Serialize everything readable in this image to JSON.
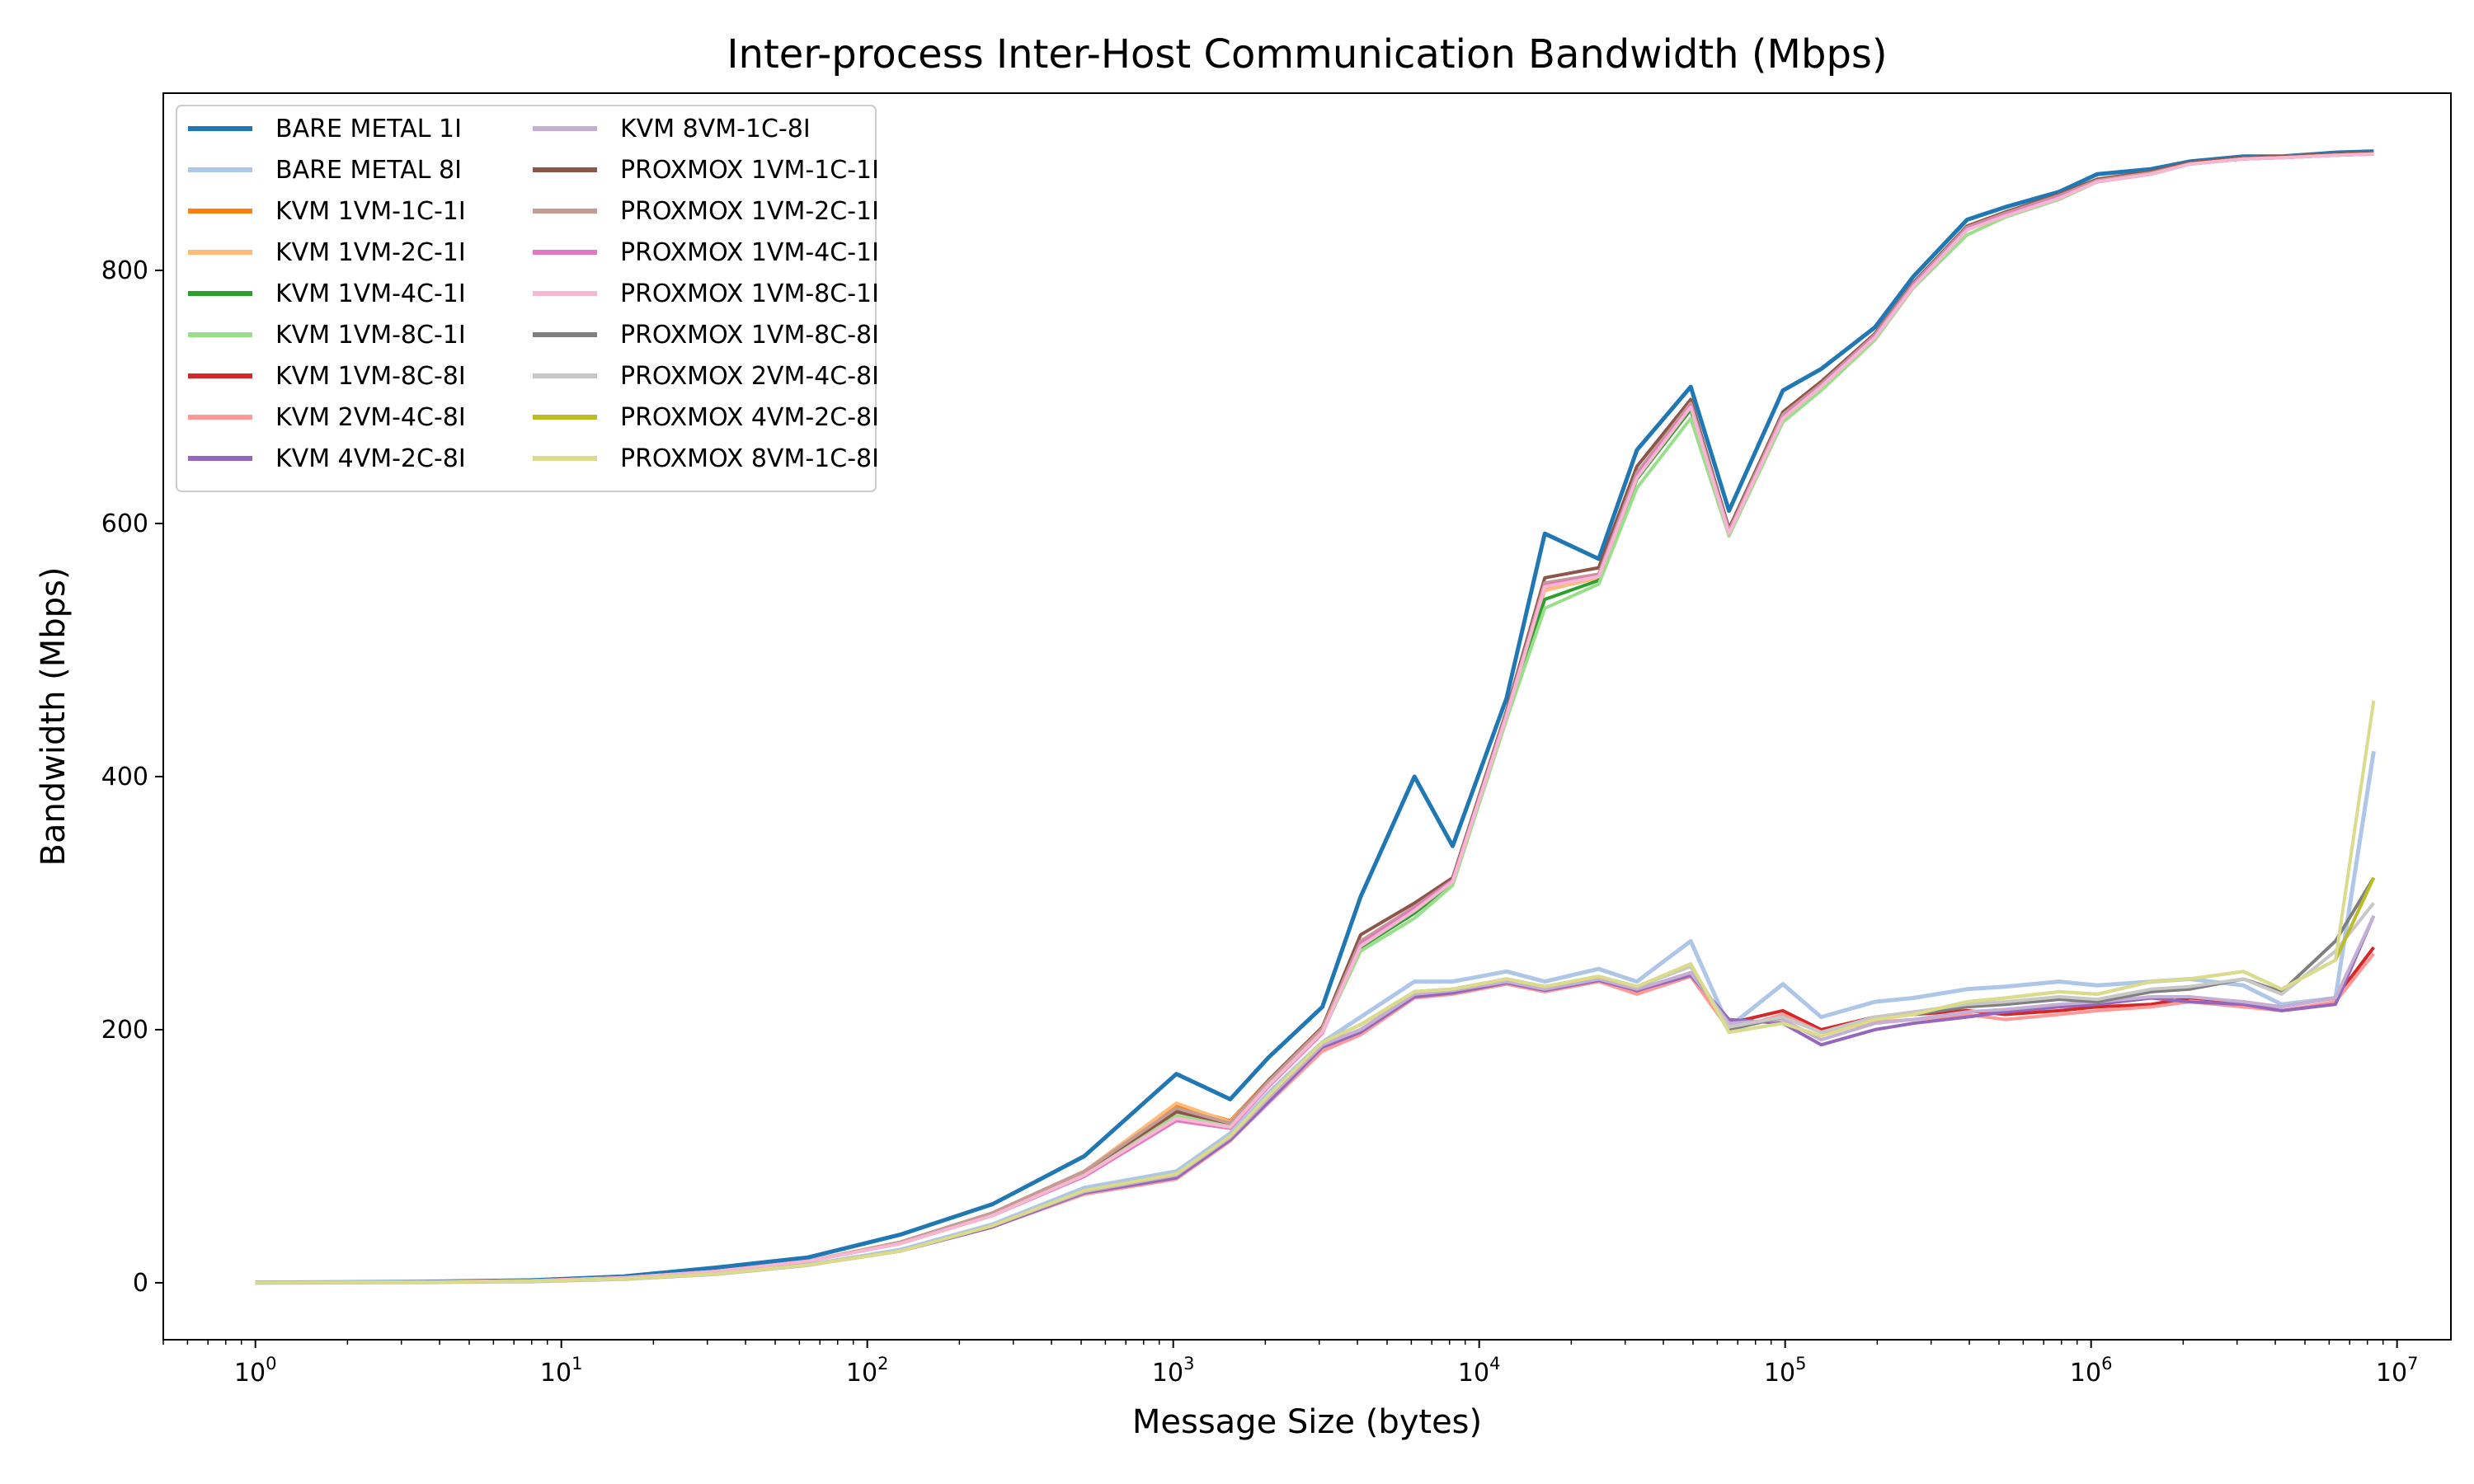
{
  "chart_data": {
    "type": "line",
    "title": "Inter-process Inter-Host Communication Bandwidth (Mbps)",
    "xlabel": "Message Size (bytes)",
    "ylabel": "Bandwidth (Mbps)",
    "xscale": "log",
    "xlim": [
      0.5,
      15000000
    ],
    "ylim": [
      -45,
      940
    ],
    "grid": false,
    "legend_position": "top-left",
    "legend_columns": 2,
    "x_ticks": [
      {
        "value": 1,
        "base": "10",
        "exp": "0"
      },
      {
        "value": 10,
        "base": "10",
        "exp": "1"
      },
      {
        "value": 100,
        "base": "10",
        "exp": "2"
      },
      {
        "value": 1000,
        "base": "10",
        "exp": "3"
      },
      {
        "value": 10000,
        "base": "10",
        "exp": "4"
      },
      {
        "value": 100000,
        "base": "10",
        "exp": "5"
      },
      {
        "value": 1000000,
        "base": "10",
        "exp": "6"
      },
      {
        "value": 10000000,
        "base": "10",
        "exp": "7"
      }
    ],
    "y_ticks": [
      0,
      200,
      400,
      600,
      800
    ],
    "x": [
      1,
      2,
      4,
      8,
      16,
      32,
      64,
      128,
      256,
      512,
      1024,
      1536,
      2048,
      3072,
      4096,
      6144,
      8192,
      12288,
      16384,
      24576,
      32768,
      49152,
      65536,
      98304,
      131072,
      196608,
      262144,
      393216,
      524288,
      786432,
      1048576,
      1572864,
      2097152,
      3145728,
      4194304,
      6291456,
      8388608
    ],
    "series": [
      {
        "name": "BARE METAL 1I",
        "color": "#1f77b4",
        "width": 5,
        "values": [
          0.2,
          0.5,
          1,
          2,
          5,
          12,
          20,
          38,
          62,
          100,
          165,
          145,
          178,
          218,
          305,
          400,
          345,
          462,
          592,
          572,
          658,
          708,
          610,
          705,
          722,
          755,
          795,
          840,
          850,
          862,
          876,
          880,
          886,
          890,
          890,
          893,
          894
        ]
      },
      {
        "name": "BARE METAL 8I",
        "color": "#aec7e8",
        "width": 5,
        "values": [
          0.1,
          0.3,
          0.6,
          1.2,
          3,
          7,
          14,
          26,
          46,
          75,
          88,
          118,
          150,
          190,
          210,
          238,
          238,
          246,
          238,
          248,
          238,
          270,
          202,
          236,
          210,
          222,
          225,
          232,
          234,
          238,
          235,
          238,
          240,
          235,
          220,
          225,
          420
        ]
      },
      {
        "name": "KVM 1VM-1C-1I",
        "color": "#ff7f0e",
        "width": 4,
        "values": [
          0.1,
          0.4,
          0.8,
          1.6,
          4,
          9,
          17,
          32,
          55,
          88,
          140,
          128,
          160,
          202,
          268,
          295,
          318,
          450,
          548,
          558,
          638,
          695,
          595,
          688,
          712,
          750,
          790,
          835,
          846,
          860,
          872,
          878,
          885,
          889,
          890,
          892,
          893
        ]
      },
      {
        "name": "KVM 1VM-2C-1I",
        "color": "#ffbb78",
        "width": 4,
        "values": [
          0.1,
          0.4,
          0.8,
          1.6,
          4,
          9,
          17,
          32,
          55,
          88,
          142,
          127,
          160,
          200,
          266,
          293,
          317,
          449,
          547,
          557,
          637,
          694,
          594,
          687,
          711,
          749,
          789,
          834,
          845,
          859,
          871,
          877,
          884,
          888,
          889,
          891,
          892
        ]
      },
      {
        "name": "KVM 1VM-4C-1I",
        "color": "#2ca02c",
        "width": 4,
        "values": [
          0.1,
          0.4,
          0.8,
          1.6,
          4,
          9,
          17,
          31,
          54,
          86,
          136,
          125,
          158,
          200,
          265,
          292,
          316,
          448,
          540,
          555,
          635,
          690,
          592,
          685,
          708,
          748,
          788,
          832,
          844,
          858,
          870,
          876,
          884,
          888,
          889,
          891,
          892
        ]
      },
      {
        "name": "KVM 1VM-8C-1I",
        "color": "#98df8a",
        "width": 4,
        "values": [
          0.1,
          0.4,
          0.8,
          1.6,
          4,
          9,
          17,
          31,
          53,
          85,
          132,
          124,
          156,
          198,
          262,
          288,
          314,
          445,
          533,
          552,
          628,
          683,
          590,
          680,
          705,
          745,
          786,
          828,
          842,
          856,
          870,
          876,
          884,
          888,
          889,
          891,
          892
        ]
      },
      {
        "name": "KVM 1VM-8C-8I",
        "color": "#d62728",
        "width": 4,
        "values": [
          0.1,
          0.3,
          0.6,
          1.2,
          3,
          7,
          14,
          25,
          44,
          72,
          84,
          115,
          145,
          188,
          200,
          228,
          230,
          238,
          232,
          240,
          230,
          245,
          205,
          215,
          200,
          210,
          212,
          215,
          212,
          215,
          218,
          220,
          225,
          222,
          218,
          225,
          265
        ]
      },
      {
        "name": "KVM 2VM-4C-8I",
        "color": "#ff9896",
        "width": 4,
        "values": [
          0.1,
          0.3,
          0.6,
          1.2,
          3,
          7,
          14,
          25,
          44,
          70,
          82,
          112,
          142,
          183,
          196,
          225,
          228,
          236,
          230,
          238,
          228,
          242,
          200,
          212,
          198,
          206,
          208,
          212,
          208,
          212,
          215,
          218,
          222,
          218,
          215,
          222,
          260
        ]
      },
      {
        "name": "KVM 4VM-2C-8I",
        "color": "#9467bd",
        "width": 4,
        "values": [
          0.1,
          0.3,
          0.6,
          1.2,
          3,
          7,
          14,
          25,
          44,
          71,
          83,
          113,
          143,
          186,
          198,
          226,
          229,
          237,
          231,
          239,
          231,
          243,
          208,
          205,
          188,
          200,
          205,
          210,
          214,
          218,
          220,
          225,
          222,
          220,
          215,
          220,
          290
        ]
      },
      {
        "name": "KVM 8VM-1C-8I",
        "color": "#c5b0d5",
        "width": 4,
        "values": [
          0.1,
          0.3,
          0.6,
          1.2,
          3,
          7,
          14,
          25,
          45,
          72,
          85,
          115,
          146,
          188,
          200,
          228,
          231,
          238,
          232,
          240,
          232,
          245,
          205,
          208,
          192,
          205,
          208,
          214,
          216,
          220,
          222,
          226,
          226,
          222,
          218,
          225,
          290
        ]
      },
      {
        "name": "PROXMOX 1VM-1C-1I",
        "color": "#8c564b",
        "width": 4,
        "values": [
          0.1,
          0.4,
          0.8,
          1.6,
          4,
          9,
          17,
          32,
          55,
          88,
          135,
          126,
          160,
          202,
          275,
          300,
          320,
          452,
          557,
          565,
          645,
          698,
          596,
          688,
          712,
          750,
          790,
          835,
          846,
          860,
          872,
          878,
          885,
          889,
          890,
          892,
          893
        ]
      },
      {
        "name": "PROXMOX 1VM-2C-1I",
        "color": "#c49c94",
        "width": 4,
        "values": [
          0.1,
          0.4,
          0.8,
          1.6,
          4,
          9,
          17,
          32,
          55,
          88,
          138,
          126,
          159,
          201,
          270,
          297,
          318,
          450,
          553,
          560,
          640,
          695,
          594,
          686,
          710,
          749,
          789,
          834,
          845,
          859,
          871,
          877,
          884,
          888,
          889,
          891,
          892
        ]
      },
      {
        "name": "PROXMOX 1VM-4C-1I",
        "color": "#e377c2",
        "width": 4,
        "values": [
          0.1,
          0.4,
          0.8,
          1.6,
          4,
          9,
          17,
          31,
          53,
          84,
          128,
          122,
          155,
          197,
          268,
          296,
          318,
          449,
          551,
          559,
          638,
          693,
          593,
          684,
          709,
          748,
          788,
          833,
          844,
          858,
          870,
          876,
          884,
          888,
          889,
          891,
          892
        ]
      },
      {
        "name": "PROXMOX 1VM-8C-1I",
        "color": "#f7b6d2",
        "width": 4,
        "values": [
          0.1,
          0.4,
          0.8,
          1.6,
          4,
          9,
          17,
          31,
          53,
          85,
          130,
          123,
          156,
          198,
          266,
          294,
          317,
          448,
          550,
          558,
          636,
          692,
          592,
          683,
          708,
          747,
          787,
          832,
          843,
          857,
          870,
          876,
          884,
          888,
          889,
          891,
          892
        ]
      },
      {
        "name": "PROXMOX 1VM-8C-8I",
        "color": "#7f7f7f",
        "width": 4,
        "values": [
          0.1,
          0.3,
          0.6,
          1.2,
          3,
          7,
          14,
          25,
          45,
          73,
          86,
          116,
          148,
          190,
          204,
          230,
          232,
          240,
          234,
          242,
          234,
          250,
          200,
          210,
          198,
          210,
          212,
          218,
          220,
          224,
          222,
          230,
          232,
          240,
          230,
          270,
          320
        ]
      },
      {
        "name": "PROXMOX 2VM-4C-8I",
        "color": "#c7c7c7",
        "width": 4,
        "values": [
          0.1,
          0.3,
          0.6,
          1.2,
          3,
          7,
          14,
          25,
          45,
          73,
          86,
          116,
          148,
          190,
          204,
          230,
          232,
          240,
          234,
          242,
          234,
          250,
          202,
          210,
          198,
          210,
          214,
          220,
          222,
          226,
          224,
          232,
          234,
          240,
          228,
          262,
          300
        ]
      },
      {
        "name": "PROXMOX 4VM-2C-8I",
        "color": "#bcbd22",
        "width": 4,
        "values": [
          0.1,
          0.3,
          0.6,
          1.2,
          3,
          7,
          14,
          25,
          45,
          73,
          86,
          116,
          148,
          190,
          204,
          230,
          232,
          240,
          234,
          242,
          234,
          252,
          198,
          205,
          195,
          208,
          212,
          222,
          225,
          230,
          228,
          238,
          240,
          246,
          232,
          255,
          320
        ]
      },
      {
        "name": "PROXMOX 8VM-1C-8I",
        "color": "#dbdb8d",
        "width": 4,
        "values": [
          0.1,
          0.3,
          0.6,
          1.2,
          3,
          7,
          14,
          25,
          45,
          73,
          86,
          116,
          148,
          190,
          204,
          230,
          232,
          240,
          234,
          242,
          234,
          252,
          198,
          205,
          195,
          208,
          212,
          222,
          225,
          230,
          228,
          238,
          240,
          246,
          232,
          255,
          460
        ]
      }
    ]
  }
}
